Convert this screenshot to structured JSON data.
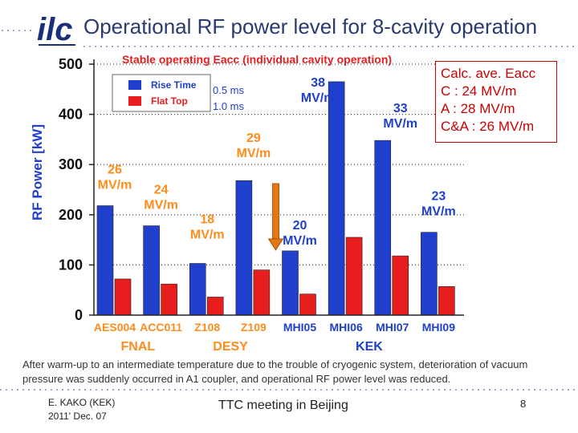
{
  "slide": {
    "title": "Operational RF power level for 8-cavity operation",
    "logo_text": "ilc",
    "note": "After warm-up to an intermediate temperature due to the trouble of cryogenic system, deterioration of vacuum pressure was suddenly occurred in A1 coupler, and operational RF power level was reduced.",
    "footer": {
      "author": "E. KAKO (KEK)",
      "date": "2011' Dec. 07",
      "meeting": "TTC meeting in Beijing",
      "page": "8"
    },
    "calc_box": {
      "title": "Calc. ave. Eacc",
      "lines": [
        "C : 24 MV/m",
        "A : 28 MV/m",
        "C&A : 26 MV/m"
      ]
    }
  },
  "colors": {
    "rise": "#1f3fcc",
    "flat": "#e81e1e",
    "label_orange": "#ff8c1a",
    "label_blue": "#1f3fcc",
    "title": "#2a3a6e",
    "arrow": "#e07a10"
  },
  "chart_data": {
    "type": "bar",
    "title": "Stable operating Eacc (individual cavity operation)",
    "ylabel": "RF Power  [kW]",
    "xlabel": "",
    "ylim": [
      0,
      500
    ],
    "yticks": [
      0,
      100,
      200,
      300,
      400,
      500
    ],
    "categories": [
      "AES004",
      "ACC011",
      "Z108",
      "Z109",
      "MHI05",
      "MHI06",
      "MHI07",
      "MHI09"
    ],
    "series": [
      {
        "name": "Rise Time",
        "values": [
          218,
          178,
          103,
          268,
          128,
          465,
          348,
          165
        ]
      },
      {
        "name": "Flat Top",
        "values": [
          72,
          62,
          36,
          90,
          42,
          155,
          118,
          57
        ]
      }
    ],
    "legend_notes": [
      "0.5 ms",
      "1.0 ms"
    ],
    "groups": [
      {
        "name": "FNAL",
        "from": 0,
        "to": 1
      },
      {
        "name": "DESY",
        "from": 2,
        "to": 3
      },
      {
        "name": "KEK",
        "from": 4,
        "to": 7
      }
    ],
    "eacc_labels": [
      {
        "cat": 0,
        "value": 26,
        "unit": "MV/m"
      },
      {
        "cat": 1,
        "value": 24,
        "unit": "MV/m"
      },
      {
        "cat": 2,
        "value": 18,
        "unit": "MV/m"
      },
      {
        "cat": 3,
        "value": 29,
        "unit": "MV/m"
      },
      {
        "cat": 4,
        "value": 20,
        "unit": "MV/m"
      },
      {
        "cat": 5,
        "value": 38,
        "unit": "MV/m"
      },
      {
        "cat": 6,
        "value": 33,
        "unit": "MV/m"
      },
      {
        "cat": 7,
        "value": 23,
        "unit": "MV/m"
      }
    ],
    "arrow": {
      "cat": 4,
      "from": 262,
      "to": 128
    }
  }
}
